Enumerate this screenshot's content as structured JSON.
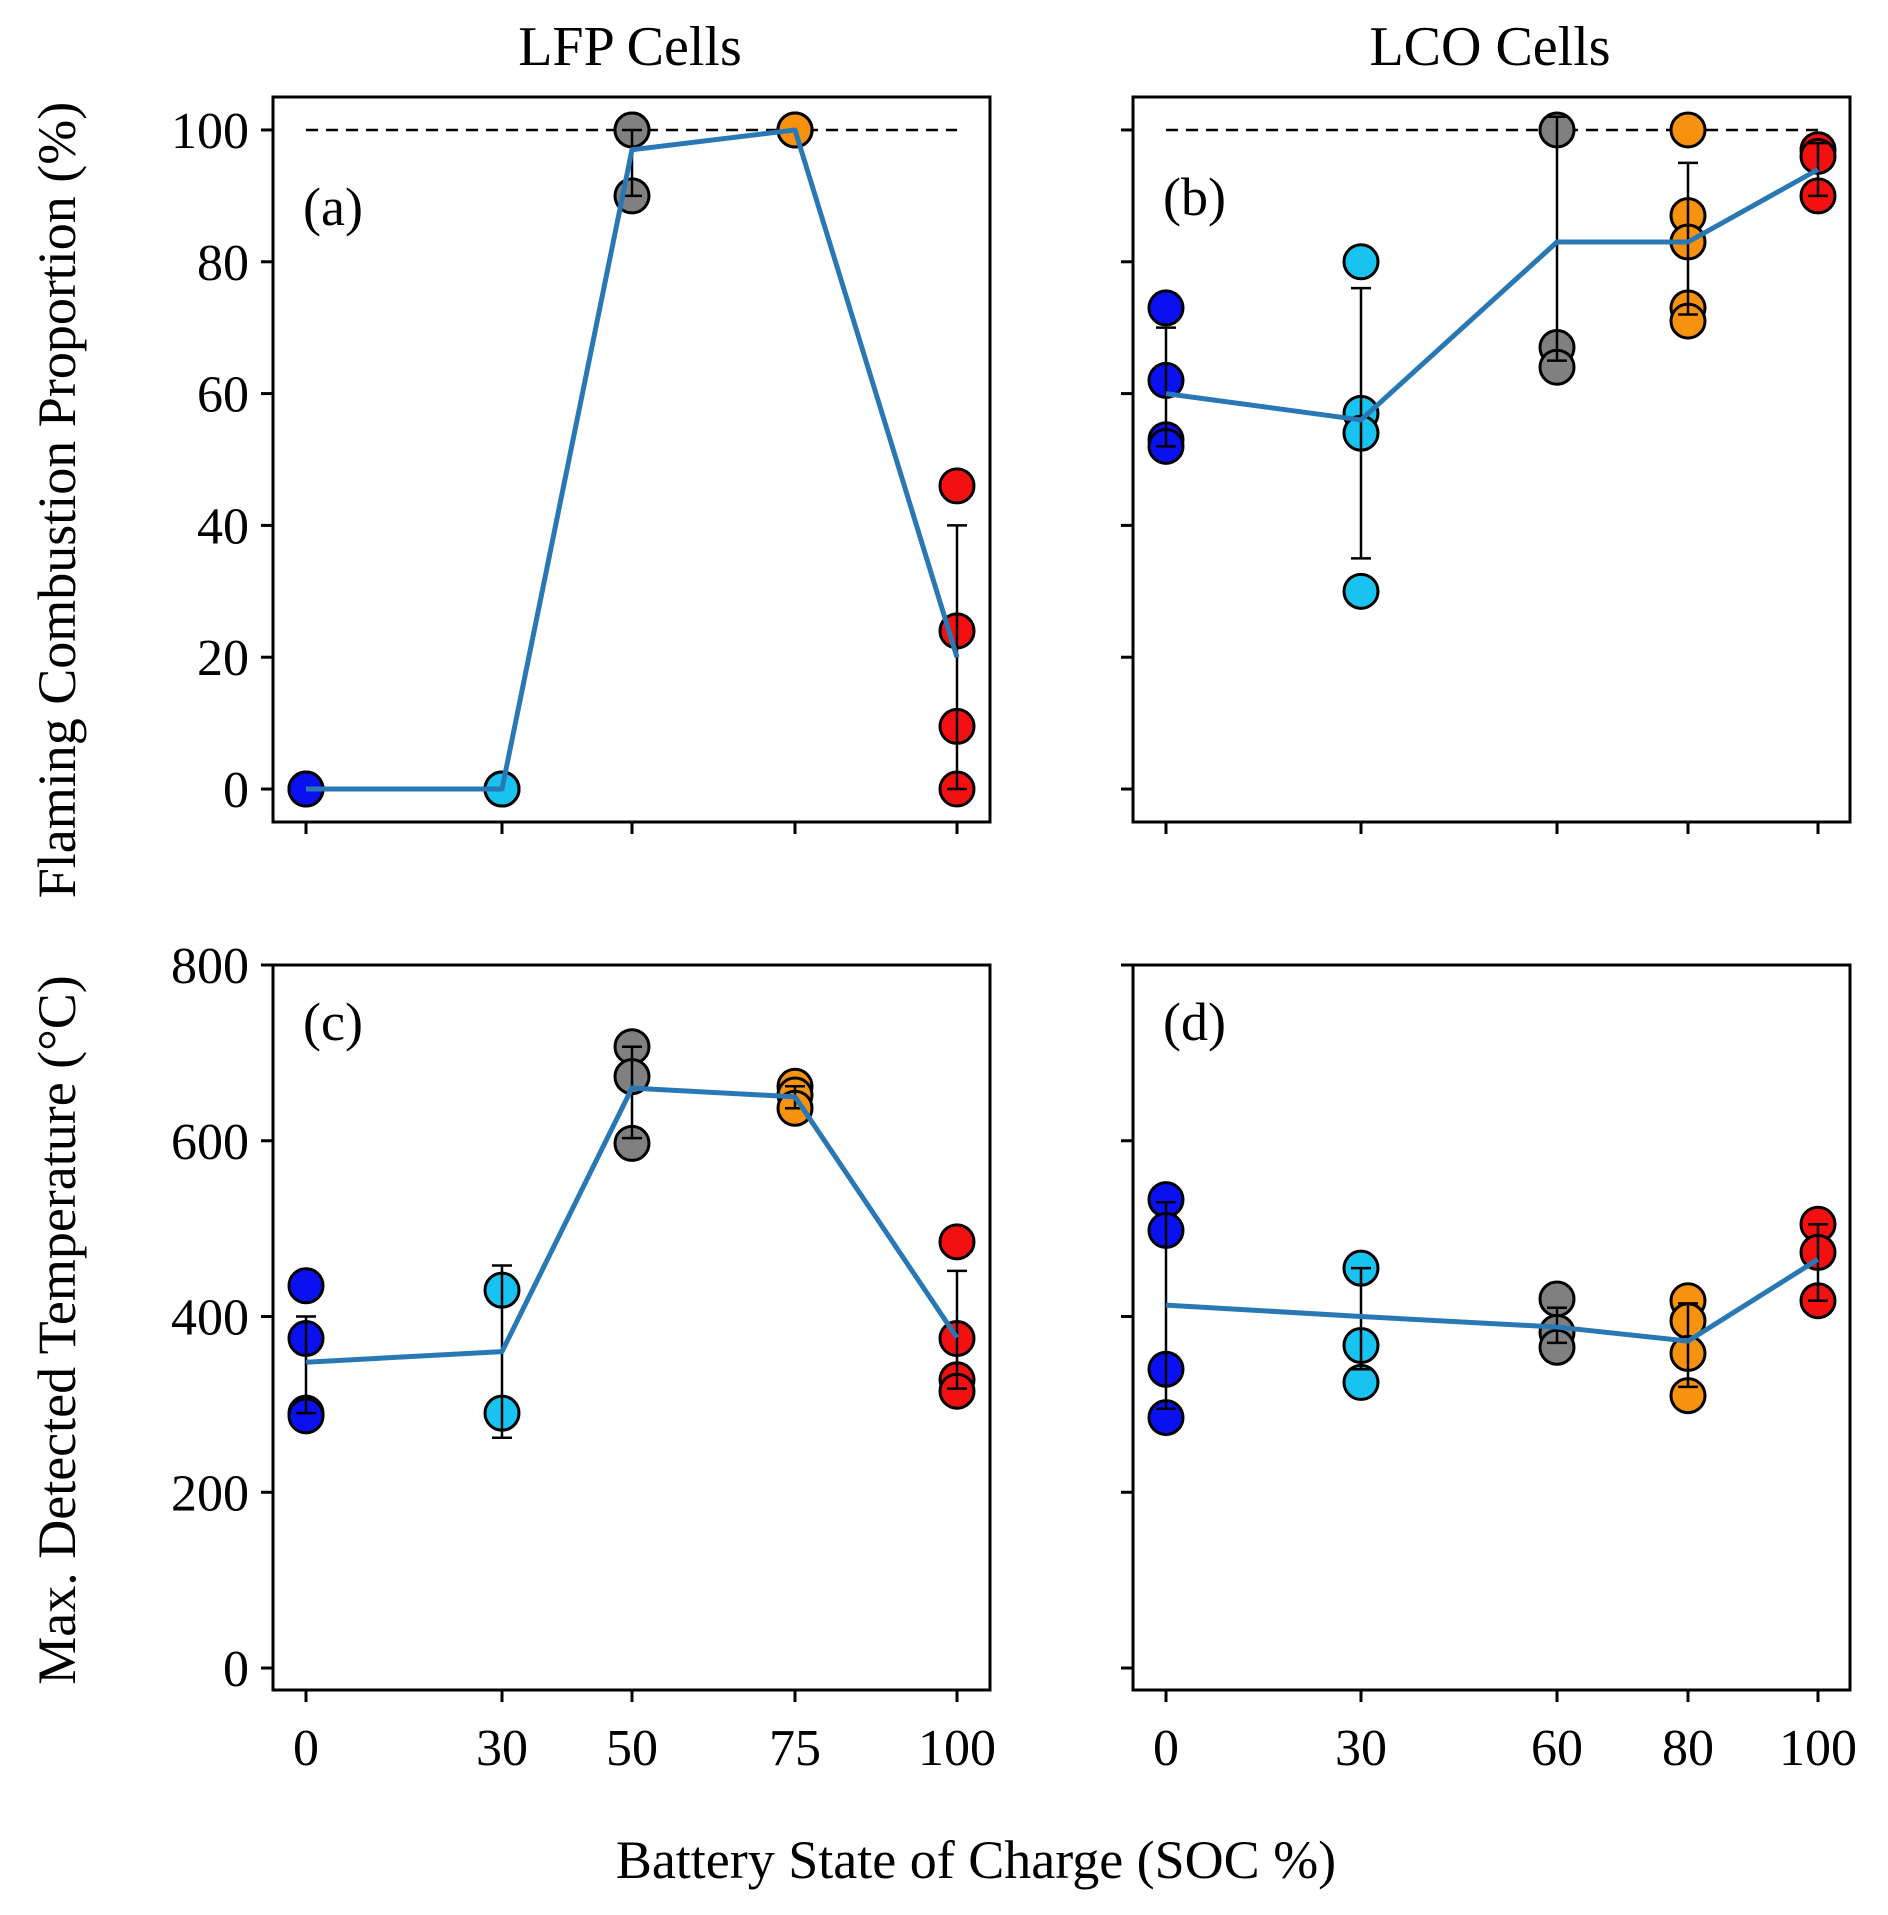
{
  "figure": {
    "xlabel": "Battery State of Charge (SOC %)",
    "col_titles": [
      "LFP Cells",
      "LCO Cells"
    ],
    "ylabels": [
      "Flaming Combustion Proportion (%)",
      "Max. Detected Temperature (°C)"
    ]
  },
  "colors": {
    "0": "#0a10f0",
    "30": "#19c3f0",
    "50": "#808080",
    "60": "#808080",
    "75": "#f7920f",
    "80": "#f7920f",
    "100": "#f21010",
    "mean_line": "#2878b5"
  },
  "chart_data": [
    {
      "type": "scatter",
      "panel": "(a)",
      "column": "LFP Cells",
      "ylabel": "Flaming Combustion Proportion (%)",
      "ylim": [
        -5,
        105
      ],
      "yticks": [
        0,
        20,
        40,
        60,
        80,
        100
      ],
      "x_categories": [
        "0",
        "30",
        "50",
        "75",
        "100"
      ],
      "reference_line": 100,
      "points": [
        {
          "x": "0",
          "y": [
            0,
            0,
            0
          ]
        },
        {
          "x": "30",
          "y": [
            0,
            0,
            0
          ]
        },
        {
          "x": "50",
          "y": [
            100,
            90,
            100
          ]
        },
        {
          "x": "75",
          "y": [
            100,
            100,
            100
          ]
        },
        {
          "x": "100",
          "y": [
            46,
            24,
            9.5,
            0
          ]
        }
      ],
      "mean": [
        0,
        0,
        97,
        100,
        20
      ],
      "error": [
        {
          "x": "50",
          "low": 90,
          "high": 100
        },
        {
          "x": "100",
          "low": 0,
          "high": 40
        }
      ]
    },
    {
      "type": "scatter",
      "panel": "(b)",
      "column": "LCO Cells",
      "ylabel": "Flaming Combustion Proportion (%)",
      "ylim": [
        -5,
        105
      ],
      "yticks": [
        0,
        20,
        40,
        60,
        80,
        100
      ],
      "x_categories": [
        "0",
        "30",
        "60",
        "80",
        "100"
      ],
      "reference_line": 100,
      "points": [
        {
          "x": "0",
          "y": [
            73,
            62,
            53,
            52
          ]
        },
        {
          "x": "30",
          "y": [
            80,
            57,
            54,
            30
          ]
        },
        {
          "x": "60",
          "y": [
            100,
            67,
            64
          ]
        },
        {
          "x": "80",
          "y": [
            100,
            87,
            83,
            73,
            71
          ]
        },
        {
          "x": "100",
          "y": [
            97,
            96,
            90
          ]
        }
      ],
      "mean": [
        60,
        56,
        83,
        83,
        94
      ],
      "error": [
        {
          "x": "0",
          "low": 52,
          "high": 70
        },
        {
          "x": "30",
          "low": 35,
          "high": 76
        },
        {
          "x": "60",
          "low": 65,
          "high": 102
        },
        {
          "x": "80",
          "low": 72,
          "high": 95
        },
        {
          "x": "100",
          "low": 90,
          "high": 98
        }
      ]
    },
    {
      "type": "scatter",
      "panel": "(c)",
      "column": "LFP Cells",
      "ylabel": "Max. Detected Temperature (°C)",
      "ylim": [
        -25,
        800
      ],
      "yticks": [
        0,
        200,
        400,
        600,
        800
      ],
      "x_categories": [
        "0",
        "30",
        "50",
        "75",
        "100"
      ],
      "points": [
        {
          "x": "0",
          "y": [
            435,
            375,
            290,
            287
          ]
        },
        {
          "x": "30",
          "y": [
            430,
            290
          ]
        },
        {
          "x": "50",
          "y": [
            707,
            673,
            597
          ]
        },
        {
          "x": "75",
          "y": [
            662,
            652,
            637
          ]
        },
        {
          "x": "100",
          "y": [
            485,
            375,
            328,
            315
          ]
        }
      ],
      "mean": [
        348,
        360,
        660,
        650,
        376
      ],
      "error": [
        {
          "x": "0",
          "low": 290,
          "high": 400
        },
        {
          "x": "30",
          "low": 262,
          "high": 458
        },
        {
          "x": "50",
          "low": 603,
          "high": 707
        },
        {
          "x": "75",
          "low": 637,
          "high": 662
        },
        {
          "x": "100",
          "low": 318,
          "high": 452
        }
      ]
    },
    {
      "type": "scatter",
      "panel": "(d)",
      "column": "LCO Cells",
      "ylabel": "Max. Detected Temperature (°C)",
      "ylim": [
        -25,
        800
      ],
      "yticks": [
        0,
        200,
        400,
        600,
        800
      ],
      "x_categories": [
        "0",
        "30",
        "60",
        "80",
        "100"
      ],
      "points": [
        {
          "x": "0",
          "y": [
            533,
            498,
            340,
            285
          ]
        },
        {
          "x": "30",
          "y": [
            455,
            367,
            325
          ]
        },
        {
          "x": "60",
          "y": [
            420,
            382,
            365
          ]
        },
        {
          "x": "80",
          "y": [
            418,
            395,
            358,
            310
          ]
        },
        {
          "x": "100",
          "y": [
            505,
            473,
            418
          ]
        }
      ],
      "mean": [
        413,
        400,
        388,
        372,
        465
      ],
      "error": [
        {
          "x": "0",
          "low": 295,
          "high": 530
        },
        {
          "x": "30",
          "low": 340,
          "high": 455
        },
        {
          "x": "60",
          "low": 370,
          "high": 410
        },
        {
          "x": "80",
          "low": 320,
          "high": 415
        },
        {
          "x": "100",
          "low": 418,
          "high": 505
        }
      ]
    }
  ]
}
